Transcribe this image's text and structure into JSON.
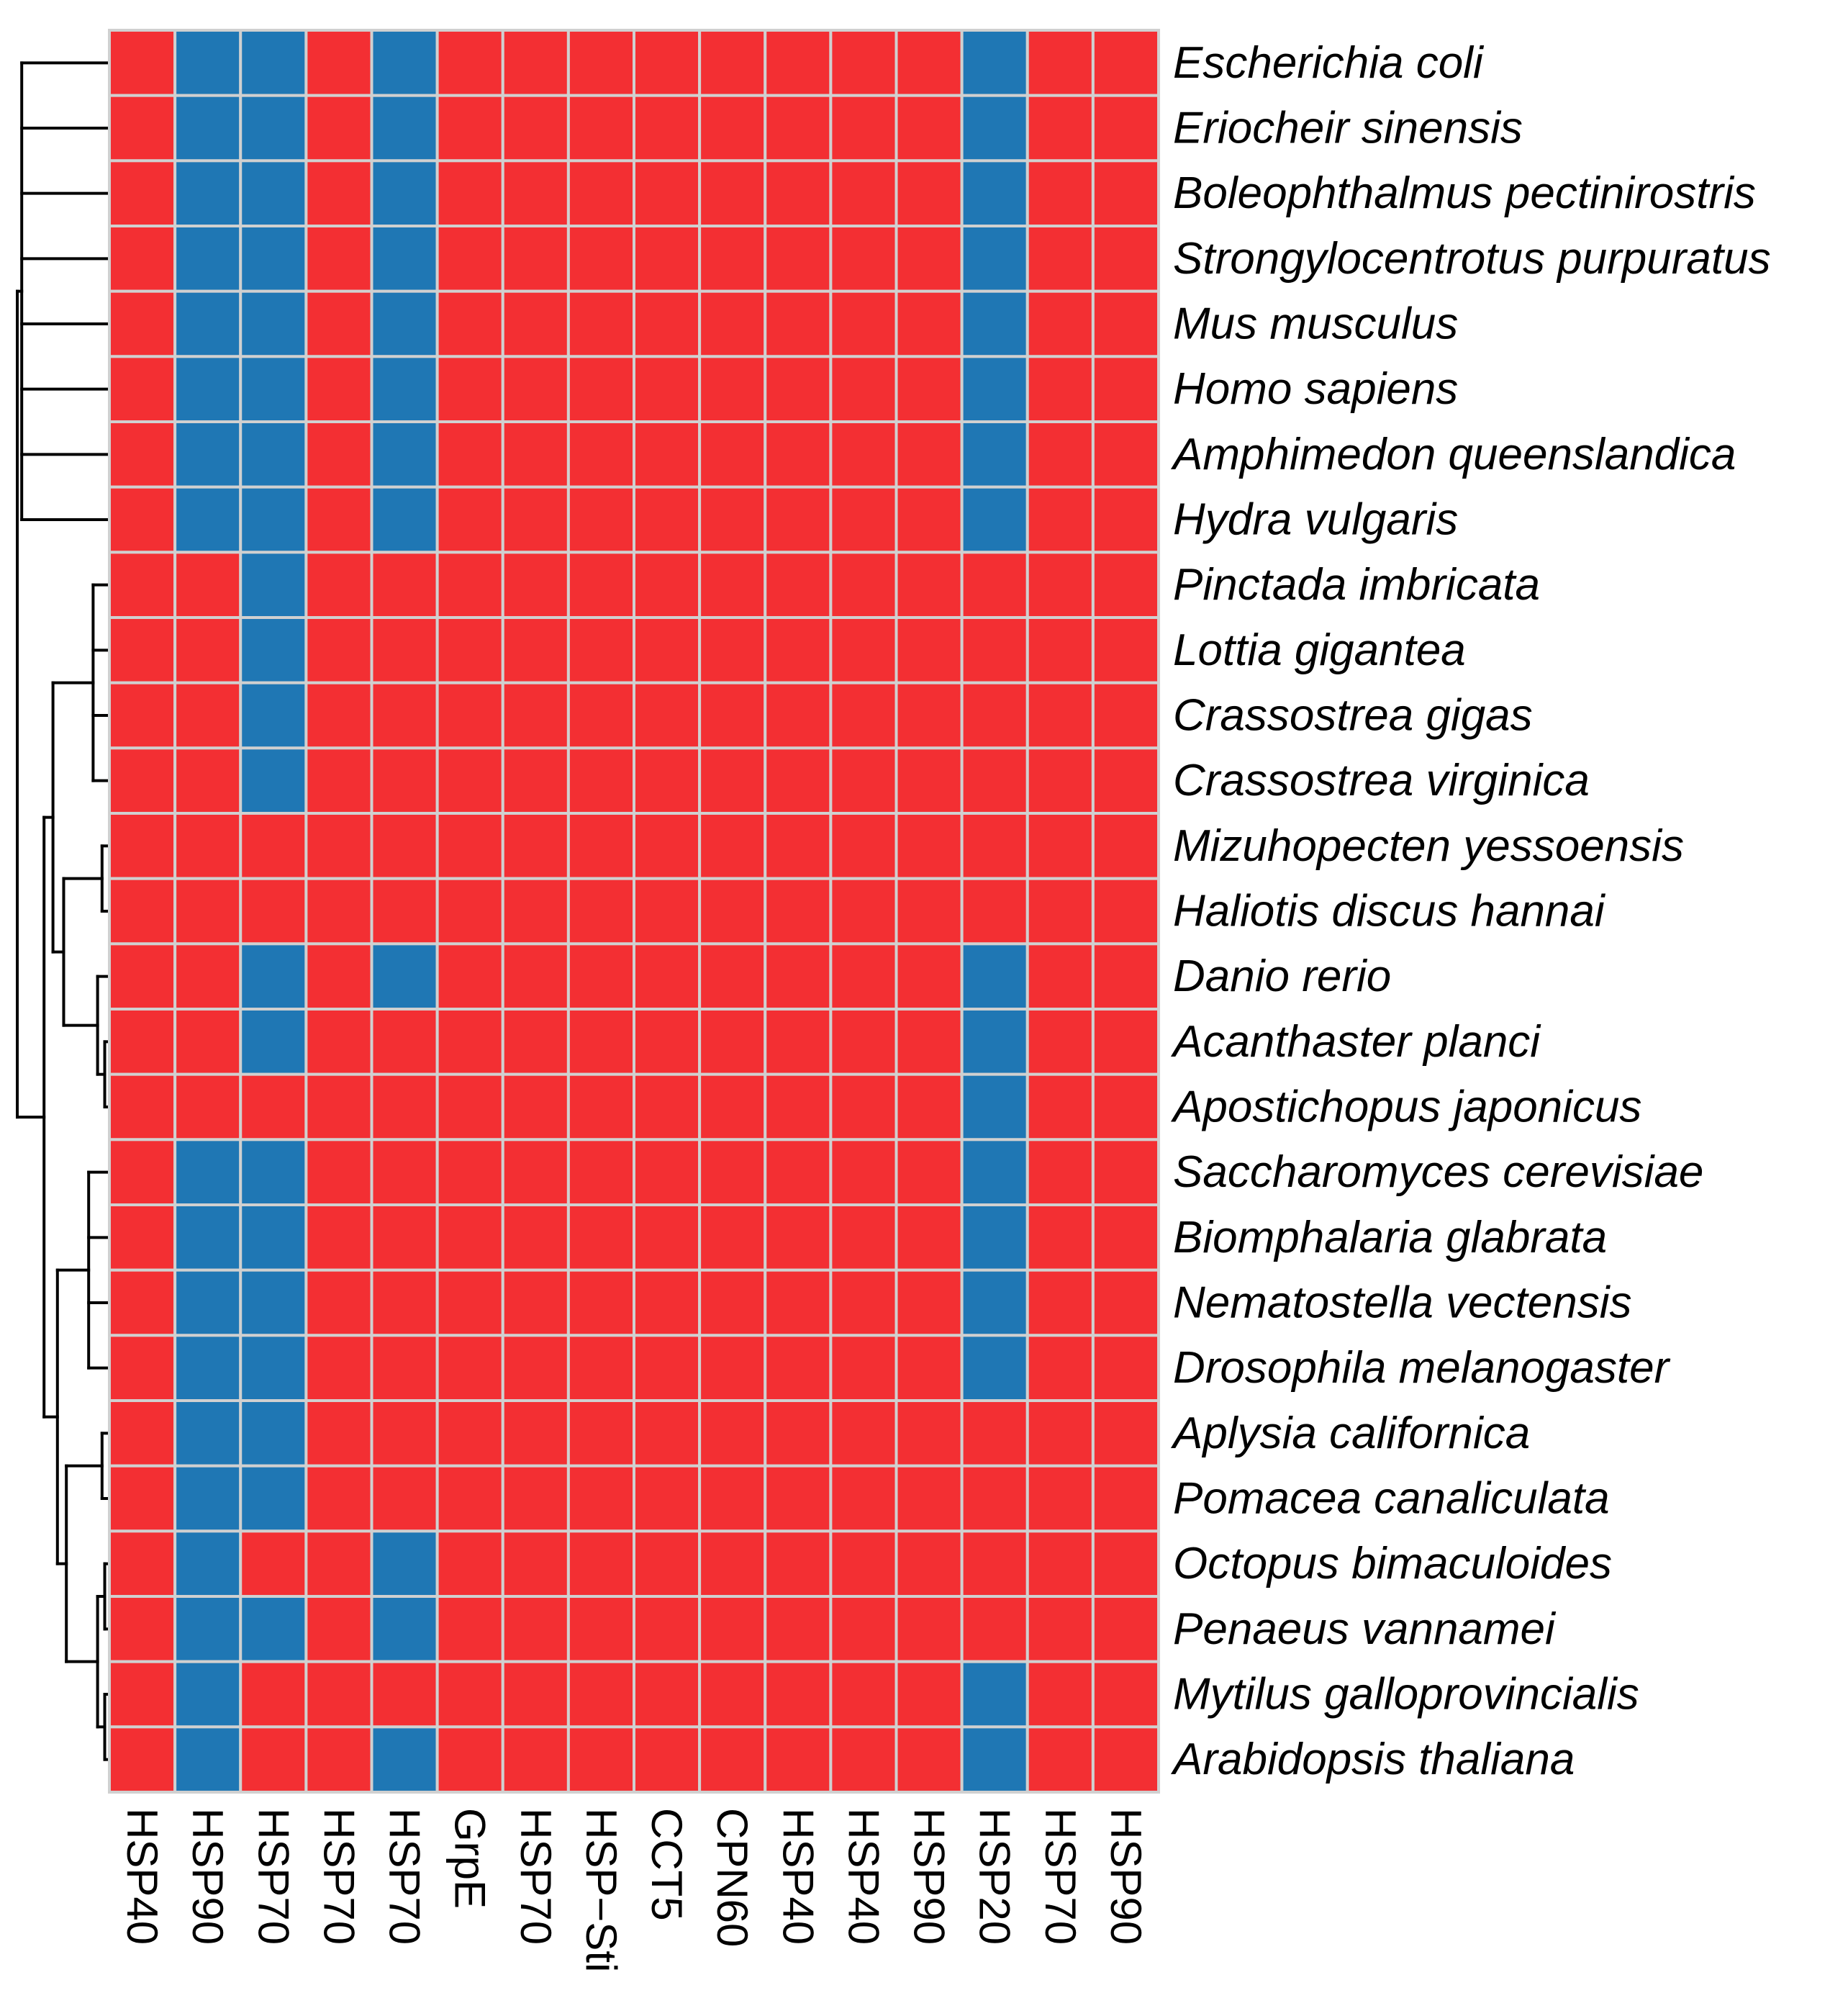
{
  "chart_data": {
    "type": "heatmap",
    "title": "",
    "xlabel": "",
    "ylabel": "",
    "legend": "none",
    "columns": [
      "HSP40",
      "HSP90",
      "HSP70",
      "HSP70",
      "HSP70",
      "GrpE",
      "HSP70",
      "HSP−Sti",
      "CCT5",
      "CPN60",
      "HSP40",
      "HSP40",
      "HSP90",
      "HSP20",
      "HSP70",
      "HSP90"
    ],
    "rows": [
      {
        "label": "Escherichia coli",
        "values": [
          1,
          0,
          0,
          1,
          0,
          1,
          1,
          1,
          1,
          1,
          1,
          1,
          1,
          0,
          1,
          1
        ]
      },
      {
        "label": "Eriocheir sinensis",
        "values": [
          1,
          0,
          0,
          1,
          0,
          1,
          1,
          1,
          1,
          1,
          1,
          1,
          1,
          0,
          1,
          1
        ]
      },
      {
        "label": "Boleophthalmus pectinirostris",
        "values": [
          1,
          0,
          0,
          1,
          0,
          1,
          1,
          1,
          1,
          1,
          1,
          1,
          1,
          0,
          1,
          1
        ]
      },
      {
        "label": "Strongylocentrotus purpuratus",
        "values": [
          1,
          0,
          0,
          1,
          0,
          1,
          1,
          1,
          1,
          1,
          1,
          1,
          1,
          0,
          1,
          1
        ]
      },
      {
        "label": "Mus musculus",
        "values": [
          1,
          0,
          0,
          1,
          0,
          1,
          1,
          1,
          1,
          1,
          1,
          1,
          1,
          0,
          1,
          1
        ]
      },
      {
        "label": "Homo sapiens",
        "values": [
          1,
          0,
          0,
          1,
          0,
          1,
          1,
          1,
          1,
          1,
          1,
          1,
          1,
          0,
          1,
          1
        ]
      },
      {
        "label": "Amphimedon queenslandica",
        "values": [
          1,
          0,
          0,
          1,
          0,
          1,
          1,
          1,
          1,
          1,
          1,
          1,
          1,
          0,
          1,
          1
        ]
      },
      {
        "label": "Hydra vulgaris",
        "values": [
          1,
          0,
          0,
          1,
          0,
          1,
          1,
          1,
          1,
          1,
          1,
          1,
          1,
          0,
          1,
          1
        ]
      },
      {
        "label": "Pinctada imbricata",
        "values": [
          1,
          1,
          0,
          1,
          1,
          1,
          1,
          1,
          1,
          1,
          1,
          1,
          1,
          1,
          1,
          1
        ]
      },
      {
        "label": "Lottia gigantea",
        "values": [
          1,
          1,
          0,
          1,
          1,
          1,
          1,
          1,
          1,
          1,
          1,
          1,
          1,
          1,
          1,
          1
        ]
      },
      {
        "label": "Crassostrea gigas",
        "values": [
          1,
          1,
          0,
          1,
          1,
          1,
          1,
          1,
          1,
          1,
          1,
          1,
          1,
          1,
          1,
          1
        ]
      },
      {
        "label": "Crassostrea virginica",
        "values": [
          1,
          1,
          0,
          1,
          1,
          1,
          1,
          1,
          1,
          1,
          1,
          1,
          1,
          1,
          1,
          1
        ]
      },
      {
        "label": "Mizuhopecten yessoensis",
        "values": [
          1,
          1,
          1,
          1,
          1,
          1,
          1,
          1,
          1,
          1,
          1,
          1,
          1,
          1,
          1,
          1
        ]
      },
      {
        "label": "Haliotis discus hannai",
        "values": [
          1,
          1,
          1,
          1,
          1,
          1,
          1,
          1,
          1,
          1,
          1,
          1,
          1,
          1,
          1,
          1
        ]
      },
      {
        "label": "Danio rerio",
        "values": [
          1,
          1,
          0,
          1,
          0,
          1,
          1,
          1,
          1,
          1,
          1,
          1,
          1,
          0,
          1,
          1
        ]
      },
      {
        "label": "Acanthaster planci",
        "values": [
          1,
          1,
          0,
          1,
          1,
          1,
          1,
          1,
          1,
          1,
          1,
          1,
          1,
          0,
          1,
          1
        ]
      },
      {
        "label": "Apostichopus japonicus",
        "values": [
          1,
          1,
          1,
          1,
          1,
          1,
          1,
          1,
          1,
          1,
          1,
          1,
          1,
          0,
          1,
          1
        ]
      },
      {
        "label": "Saccharomyces cerevisiae",
        "values": [
          1,
          0,
          0,
          1,
          1,
          1,
          1,
          1,
          1,
          1,
          1,
          1,
          1,
          0,
          1,
          1
        ]
      },
      {
        "label": "Biomphalaria glabrata",
        "values": [
          1,
          0,
          0,
          1,
          1,
          1,
          1,
          1,
          1,
          1,
          1,
          1,
          1,
          0,
          1,
          1
        ]
      },
      {
        "label": "Nematostella vectensis",
        "values": [
          1,
          0,
          0,
          1,
          1,
          1,
          1,
          1,
          1,
          1,
          1,
          1,
          1,
          0,
          1,
          1
        ]
      },
      {
        "label": "Drosophila melanogaster",
        "values": [
          1,
          0,
          0,
          1,
          1,
          1,
          1,
          1,
          1,
          1,
          1,
          1,
          1,
          0,
          1,
          1
        ]
      },
      {
        "label": "Aplysia californica",
        "values": [
          1,
          0,
          0,
          1,
          1,
          1,
          1,
          1,
          1,
          1,
          1,
          1,
          1,
          1,
          1,
          1
        ]
      },
      {
        "label": "Pomacea canaliculata",
        "values": [
          1,
          0,
          0,
          1,
          1,
          1,
          1,
          1,
          1,
          1,
          1,
          1,
          1,
          1,
          1,
          1
        ]
      },
      {
        "label": "Octopus bimaculoides",
        "values": [
          1,
          0,
          1,
          1,
          0,
          1,
          1,
          1,
          1,
          1,
          1,
          1,
          1,
          1,
          1,
          1
        ]
      },
      {
        "label": "Penaeus vannamei",
        "values": [
          1,
          0,
          0,
          1,
          0,
          1,
          1,
          1,
          1,
          1,
          1,
          1,
          1,
          1,
          1,
          1
        ]
      },
      {
        "label": "Mytilus galloprovincialis",
        "values": [
          1,
          0,
          1,
          1,
          1,
          1,
          1,
          1,
          1,
          1,
          1,
          1,
          1,
          0,
          1,
          1
        ]
      },
      {
        "label": "Arabidopsis thaliana",
        "values": [
          1,
          0,
          1,
          1,
          0,
          1,
          1,
          1,
          1,
          1,
          1,
          1,
          1,
          0,
          1,
          1
        ]
      }
    ],
    "colors": {
      "present": "#f32f33",
      "absent": "#1f77b4",
      "grid": "#d0d0d0",
      "dendrogram": "#000000"
    },
    "value_key": {
      "1": "present",
      "0": "absent"
    },
    "row_dendrogram": true
  }
}
